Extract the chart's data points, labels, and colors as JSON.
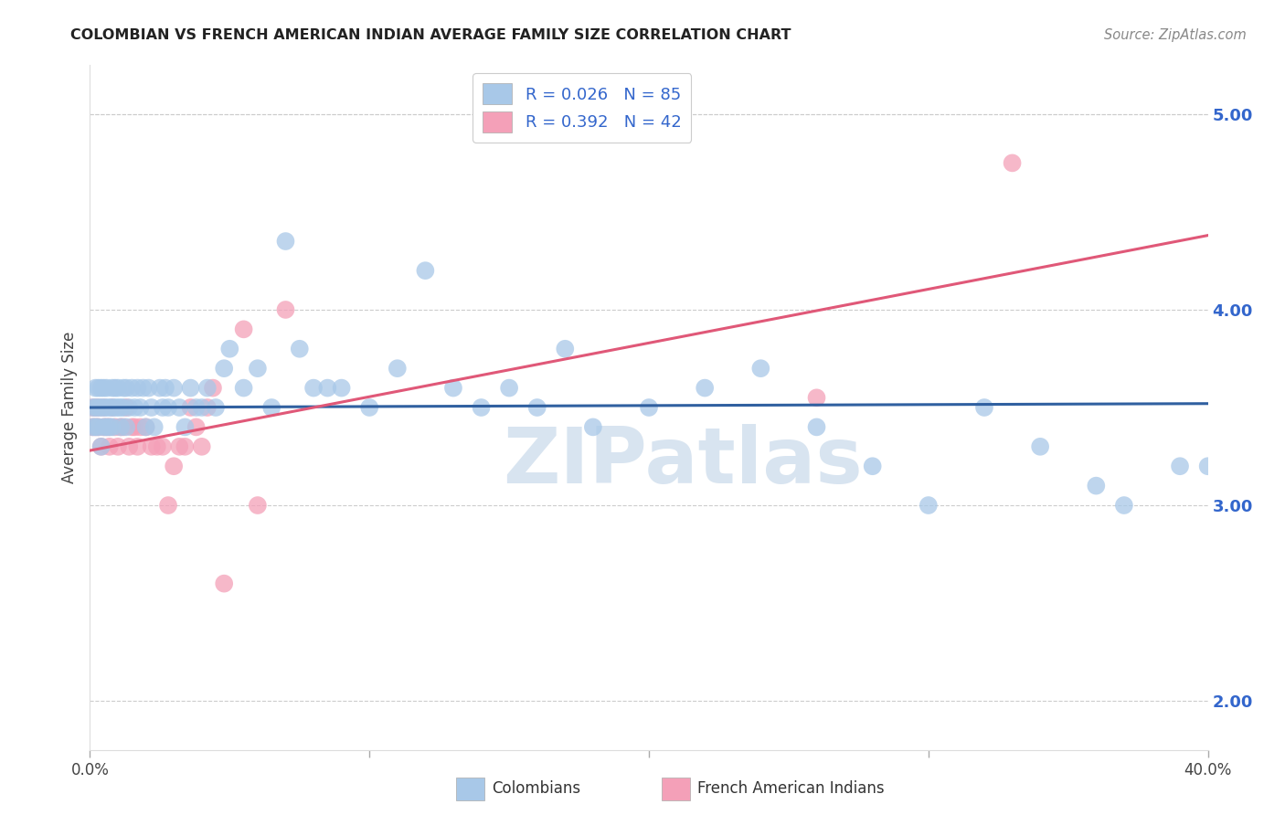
{
  "title": "COLOMBIAN VS FRENCH AMERICAN INDIAN AVERAGE FAMILY SIZE CORRELATION CHART",
  "source": "Source: ZipAtlas.com",
  "ylabel": "Average Family Size",
  "right_yticks": [
    2.0,
    3.0,
    4.0,
    5.0
  ],
  "legend_blue_r": "0.026",
  "legend_blue_n": "85",
  "legend_pink_r": "0.392",
  "legend_pink_n": "42",
  "blue_color": "#a8c8e8",
  "pink_color": "#f4a0b8",
  "blue_line_color": "#3060a0",
  "pink_line_color": "#e05878",
  "legend_box_blue": "#a8c8e8",
  "legend_box_pink": "#f4a0b8",
  "legend_label_blue": "Colombians",
  "legend_label_pink": "French American Indians",
  "blue_scatter_x": [
    0.001,
    0.001,
    0.002,
    0.002,
    0.002,
    0.003,
    0.003,
    0.003,
    0.004,
    0.004,
    0.004,
    0.005,
    0.005,
    0.005,
    0.006,
    0.006,
    0.006,
    0.007,
    0.007,
    0.008,
    0.008,
    0.008,
    0.009,
    0.009,
    0.01,
    0.01,
    0.011,
    0.011,
    0.012,
    0.012,
    0.013,
    0.013,
    0.014,
    0.015,
    0.016,
    0.017,
    0.018,
    0.019,
    0.02,
    0.021,
    0.022,
    0.023,
    0.025,
    0.026,
    0.027,
    0.028,
    0.03,
    0.032,
    0.034,
    0.036,
    0.038,
    0.04,
    0.042,
    0.045,
    0.048,
    0.05,
    0.055,
    0.06,
    0.065,
    0.07,
    0.075,
    0.08,
    0.085,
    0.09,
    0.1,
    0.11,
    0.12,
    0.13,
    0.14,
    0.15,
    0.16,
    0.17,
    0.18,
    0.2,
    0.22,
    0.24,
    0.26,
    0.28,
    0.3,
    0.32,
    0.34,
    0.36,
    0.37,
    0.39,
    0.4
  ],
  "blue_scatter_y": [
    3.5,
    3.4,
    3.6,
    3.5,
    3.4,
    3.5,
    3.4,
    3.6,
    3.5,
    3.3,
    3.6,
    3.5,
    3.4,
    3.6,
    3.5,
    3.4,
    3.6,
    3.5,
    3.4,
    3.6,
    3.5,
    3.4,
    3.6,
    3.5,
    3.5,
    3.6,
    3.4,
    3.5,
    3.6,
    3.5,
    3.4,
    3.6,
    3.5,
    3.6,
    3.5,
    3.6,
    3.5,
    3.6,
    3.4,
    3.6,
    3.5,
    3.4,
    3.6,
    3.5,
    3.6,
    3.5,
    3.6,
    3.5,
    3.4,
    3.6,
    3.5,
    3.5,
    3.6,
    3.5,
    3.7,
    3.8,
    3.6,
    3.7,
    3.5,
    4.35,
    3.8,
    3.6,
    3.6,
    3.6,
    3.5,
    3.7,
    4.2,
    3.6,
    3.5,
    3.6,
    3.5,
    3.8,
    3.4,
    3.5,
    3.6,
    3.7,
    3.4,
    3.2,
    3.0,
    3.5,
    3.3,
    3.1,
    3.0,
    3.2,
    3.2
  ],
  "pink_scatter_x": [
    0.001,
    0.001,
    0.002,
    0.002,
    0.003,
    0.003,
    0.004,
    0.005,
    0.005,
    0.006,
    0.007,
    0.007,
    0.008,
    0.009,
    0.01,
    0.011,
    0.012,
    0.013,
    0.014,
    0.015,
    0.016,
    0.017,
    0.018,
    0.02,
    0.022,
    0.024,
    0.026,
    0.028,
    0.03,
    0.032,
    0.034,
    0.036,
    0.038,
    0.04,
    0.042,
    0.044,
    0.048,
    0.055,
    0.06,
    0.07,
    0.26,
    0.33
  ],
  "pink_scatter_y": [
    3.5,
    3.4,
    3.4,
    3.5,
    3.4,
    3.5,
    3.3,
    3.4,
    3.5,
    3.4,
    3.3,
    3.4,
    3.5,
    3.4,
    3.3,
    3.4,
    3.4,
    3.5,
    3.3,
    3.4,
    3.4,
    3.3,
    3.4,
    3.4,
    3.3,
    3.3,
    3.3,
    3.0,
    3.2,
    3.3,
    3.3,
    3.5,
    3.4,
    3.3,
    3.5,
    3.6,
    2.6,
    3.9,
    3.0,
    4.0,
    3.55,
    4.75
  ],
  "xlim": [
    0.0,
    0.4
  ],
  "ylim": [
    1.75,
    5.25
  ],
  "blue_trend_x": [
    0.0,
    0.4
  ],
  "blue_trend_y": [
    3.5,
    3.52
  ],
  "pink_trend_x": [
    0.0,
    0.4
  ],
  "pink_trend_y": [
    3.28,
    4.38
  ],
  "background_color": "#ffffff",
  "grid_color": "#cccccc",
  "watermark_text": "ZIPatlas",
  "watermark_color": "#d8e4f0"
}
